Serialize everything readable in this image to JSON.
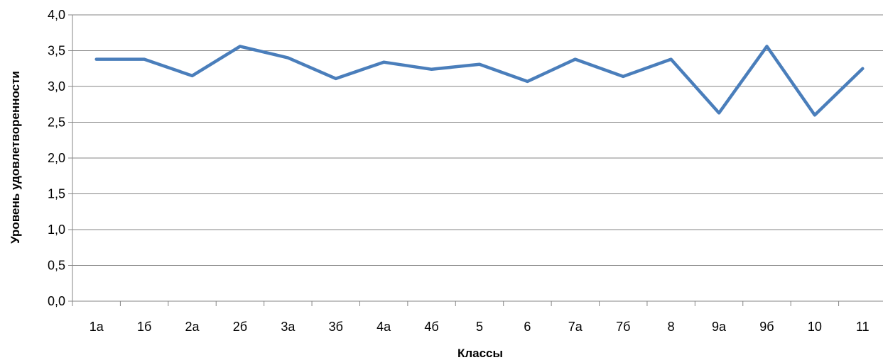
{
  "chart_data": {
    "type": "line",
    "title": "",
    "xlabel": "Классы",
    "ylabel": "Уровень удовлетворенности",
    "categories": [
      "1а",
      "1б",
      "2а",
      "2б",
      "3а",
      "3б",
      "4а",
      "4б",
      "5",
      "6",
      "7а",
      "7б",
      "8",
      "9а",
      "9б",
      "10",
      "11"
    ],
    "series": [
      {
        "values": [
          3.38,
          3.38,
          3.15,
          3.56,
          3.4,
          3.11,
          3.34,
          3.24,
          3.31,
          3.07,
          3.38,
          3.14,
          3.38,
          2.63,
          3.56,
          2.6,
          3.25
        ]
      }
    ],
    "yticks": [
      "0,0",
      "0,5",
      "1,0",
      "1,5",
      "2,0",
      "2,5",
      "3,0",
      "3,5",
      "4,0"
    ],
    "ylim": [
      0,
      4
    ],
    "grid": true,
    "legend": "none",
    "colors": {
      "line": "#4a7ebb",
      "grid": "#868686",
      "axis": "#868686"
    }
  }
}
